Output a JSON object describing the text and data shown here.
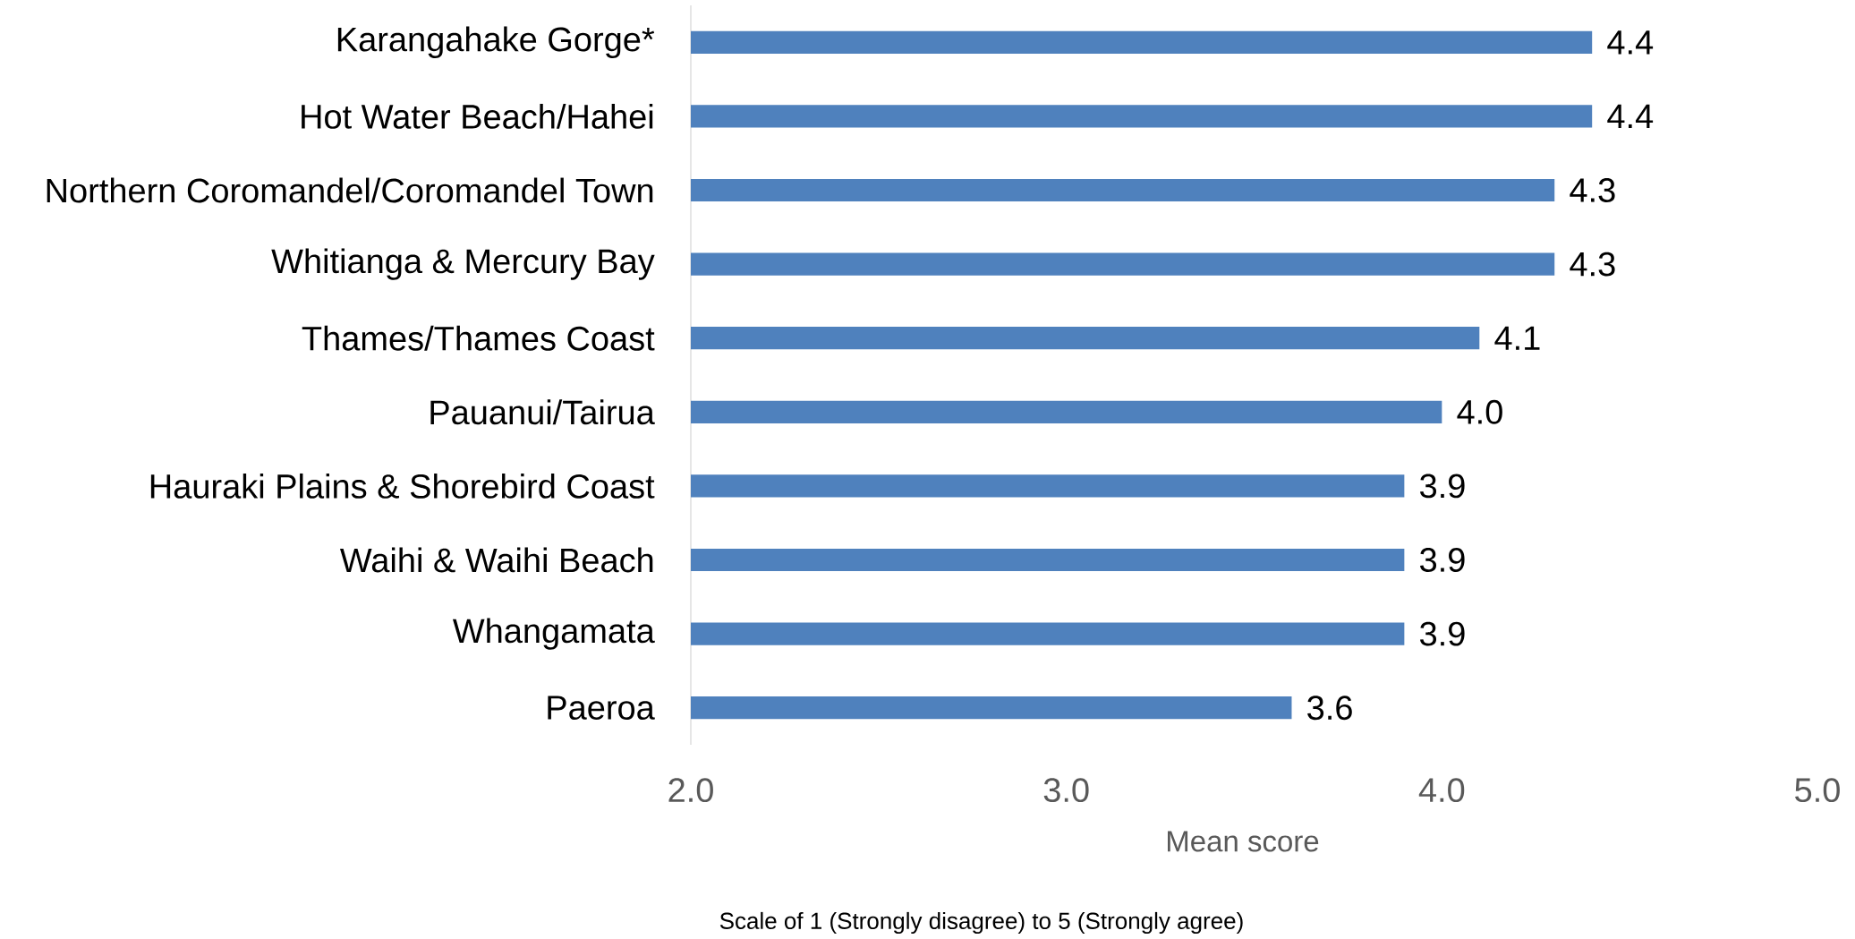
{
  "chart_data": {
    "type": "bar",
    "orientation": "horizontal",
    "xlabel": "Mean score",
    "annotations": [
      "Scale of 1 (Strongly disagree) to 5 (Strongly agree)"
    ],
    "categories": [
      "Karangahake Gorge*",
      "Hot Water Beach/Hahei",
      "Northern Coromandel/Coromandel Town",
      "Whitianga & Mercury Bay",
      "Thames/Thames Coast",
      "Pauanui/Tairua",
      "Hauraki Plains & Shorebird Coast",
      "Waihi & Waihi Beach",
      "Whangamata",
      "Paeroa"
    ],
    "values": [
      4.4,
      4.4,
      4.3,
      4.3,
      4.1,
      4.0,
      3.9,
      3.9,
      3.9,
      3.6
    ],
    "value_labels": [
      "4.4",
      "4.4",
      "4.3",
      "4.3",
      "4.1",
      "4.0",
      "3.9",
      "3.9",
      "3.9",
      "3.6"
    ],
    "color": "#4f81bd",
    "xlim": [
      2,
      5
    ],
    "xticks": [
      {
        "value": 2,
        "label": "2.0"
      },
      {
        "value": 3,
        "label": "3.0"
      },
      {
        "value": 4,
        "label": "4.0"
      },
      {
        "value": 5,
        "label": "5.0"
      }
    ]
  }
}
